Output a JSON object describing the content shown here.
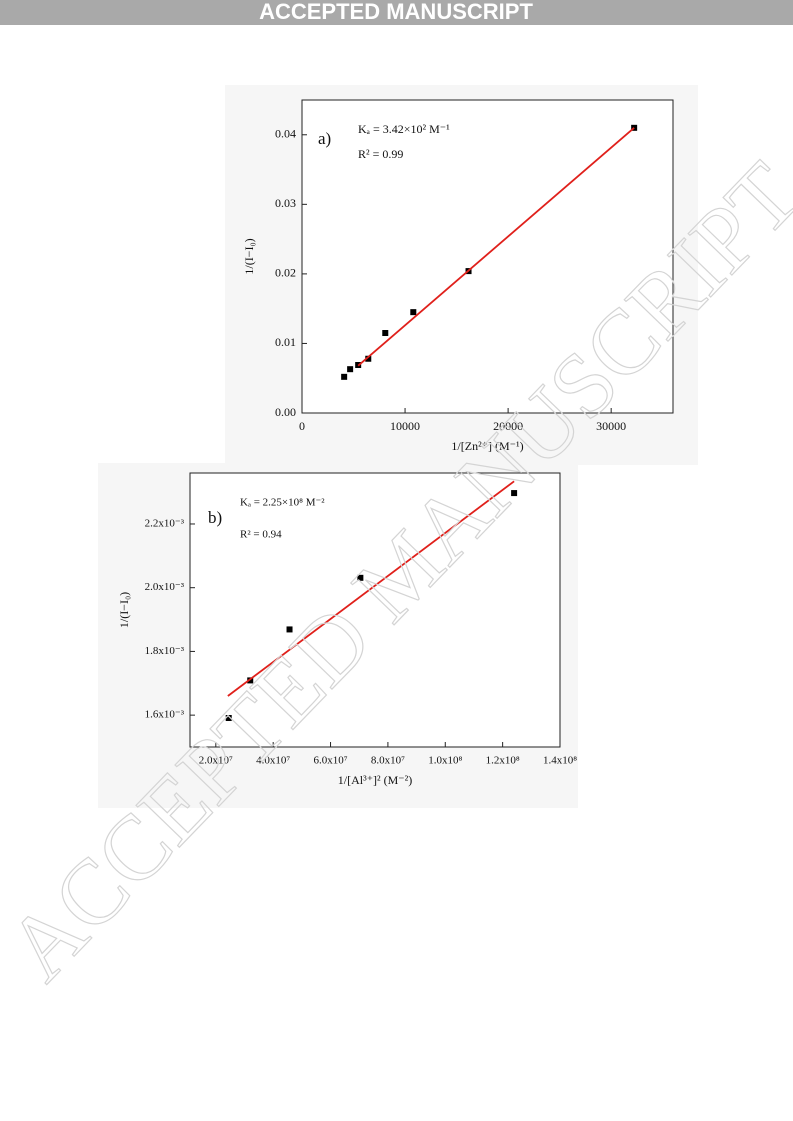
{
  "header": "ACCEPTED MANUSCRIPT",
  "watermark": "ACCEPTED MANUSCRIPT",
  "chart_data": [
    {
      "type": "scatter",
      "panel": "a)",
      "annotations": [
        "Kₐ = 3.42×10² M⁻¹",
        "R² = 0.99"
      ],
      "xlabel": "1/[Zn²⁺] (M⁻¹)",
      "ylabel": "1/(I−I₀)",
      "xlim": [
        0,
        36000
      ],
      "xticks": [
        0,
        10000,
        20000,
        30000
      ],
      "ylim": [
        0,
        0.045
      ],
      "yticks": [
        {
          "value": 0,
          "label": "0.00"
        },
        {
          "value": 0.01,
          "label": "0.01"
        },
        {
          "value": 0.02,
          "label": "0.02"
        },
        {
          "value": 0.03,
          "label": "0.03"
        },
        {
          "value": 0.04,
          "label": "0.04"
        }
      ],
      "series": [
        {
          "color": "#000000",
          "marker": "square",
          "x": [
            4090,
            4670,
            5450,
            6430,
            8080,
            10800,
            16160,
            32230
          ],
          "values": [
            0.0052,
            0.0063,
            0.0069,
            0.0078,
            0.0115,
            0.0145,
            0.0204,
            0.041
          ]
        },
        {
          "color": "#e0201b",
          "marker": "line",
          "x": [
            5450,
            32230
          ],
          "values": [
            0.0068,
            0.041
          ]
        }
      ]
    },
    {
      "type": "scatter",
      "panel": "b)",
      "annotations": [
        "Kₐ = 2.25×10⁸ M⁻²",
        "R² = 0.94"
      ],
      "xlabel": "1/[Al³⁺]² (M⁻²)",
      "ylabel": "1/(I−I₀)",
      "xlim": [
        11000000,
        140000000
      ],
      "xticks": [
        {
          "value": 20000000,
          "label": "2.0x10⁷"
        },
        {
          "value": 40000000,
          "label": "4.0x10⁷"
        },
        {
          "value": 60000000,
          "label": "6.0x10⁷"
        },
        {
          "value": 80000000,
          "label": "8.0x10⁷"
        },
        {
          "value": 100000000,
          "label": "1.0x10⁸"
        },
        {
          "value": 120000000,
          "label": "1.2x10⁸"
        },
        {
          "value": 140000000,
          "label": "1.4x10⁸"
        }
      ],
      "ylim": [
        0.0015,
        0.00236
      ],
      "yticks": [
        {
          "value": 0.0016,
          "label": "1.6x10⁻³"
        },
        {
          "value": 0.0018,
          "label": "1.8x10⁻³"
        },
        {
          "value": 0.002,
          "label": "2.0x10⁻³"
        },
        {
          "value": 0.0022,
          "label": "2.2x10⁻³"
        }
      ],
      "series": [
        {
          "color": "#000000",
          "marker": "square",
          "x": [
            24500000,
            32000000,
            45700000,
            70400000,
            124000000
          ],
          "values": [
            0.001591,
            0.001709,
            0.001869,
            0.002031,
            0.002297
          ]
        },
        {
          "color": "#e0201b",
          "marker": "line",
          "x": [
            24200000,
            124000000
          ],
          "values": [
            0.00166,
            0.002334
          ]
        }
      ]
    }
  ]
}
